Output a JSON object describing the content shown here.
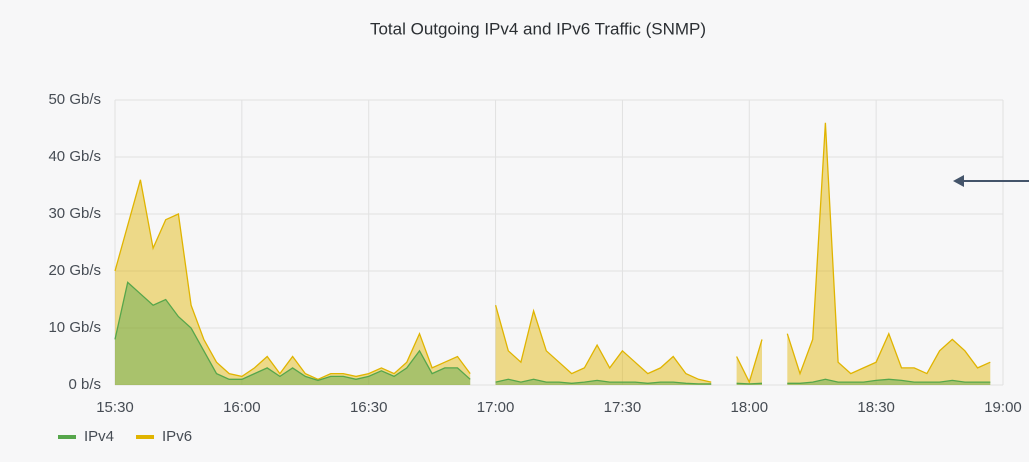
{
  "chart_data": {
    "type": "area",
    "title": "Total Outgoing IPv4 and IPv6 Traffic (SNMP)",
    "x": [
      "15:30",
      "15:33",
      "15:36",
      "15:39",
      "15:42",
      "15:45",
      "15:48",
      "15:51",
      "15:54",
      "15:57",
      "16:00",
      "16:03",
      "16:06",
      "16:09",
      "16:12",
      "16:15",
      "16:18",
      "16:21",
      "16:24",
      "16:27",
      "16:30",
      "16:33",
      "16:36",
      "16:39",
      "16:42",
      "16:45",
      "16:48",
      "16:51",
      "16:54",
      "16:57",
      "17:00",
      "17:03",
      "17:06",
      "17:09",
      "17:12",
      "17:15",
      "17:18",
      "17:21",
      "17:24",
      "17:27",
      "17:30",
      "17:33",
      "17:36",
      "17:39",
      "17:42",
      "17:45",
      "17:48",
      "17:51",
      "17:54",
      "17:57",
      "18:00",
      "18:03",
      "18:06",
      "18:09",
      "18:12",
      "18:15",
      "18:18",
      "18:21",
      "18:24",
      "18:27",
      "18:30",
      "18:33",
      "18:36",
      "18:39",
      "18:42",
      "18:45",
      "18:48",
      "18:51",
      "18:54",
      "18:57"
    ],
    "series": [
      {
        "name": "IPv6",
        "color": "#e0b400",
        "values": [
          20,
          28,
          36,
          24,
          29,
          30,
          14,
          8,
          4,
          2,
          1.5,
          3,
          5,
          2,
          5,
          2,
          1,
          2,
          2,
          1.5,
          2,
          3,
          2,
          4,
          9,
          3,
          4,
          5,
          2,
          null,
          14,
          6,
          4,
          13,
          6,
          4,
          2,
          3,
          7,
          3,
          6,
          4,
          2,
          3,
          5,
          2,
          1,
          0.5,
          null,
          5,
          0.5,
          8,
          null,
          9,
          2,
          8,
          46,
          4,
          2,
          3,
          4,
          9,
          3,
          3,
          2,
          6,
          8,
          6,
          3,
          4
        ]
      },
      {
        "name": "IPv4",
        "color": "#56a64b",
        "values": [
          8,
          18,
          16,
          14,
          15,
          12,
          10,
          6,
          2,
          1,
          1,
          2,
          3,
          1.5,
          3,
          1.5,
          0.8,
          1.5,
          1.5,
          1,
          1.5,
          2.5,
          1.5,
          3,
          6,
          2,
          3,
          3,
          1,
          null,
          0.5,
          1,
          0.5,
          1,
          0.5,
          0.5,
          0.3,
          0.5,
          0.8,
          0.5,
          0.5,
          0.5,
          0.3,
          0.5,
          0.5,
          0.3,
          0.2,
          0.2,
          null,
          0.3,
          0.2,
          0.3,
          null,
          0.3,
          0.3,
          0.5,
          1,
          0.5,
          0.5,
          0.5,
          0.8,
          1,
          0.8,
          0.5,
          0.5,
          0.5,
          0.8,
          0.5,
          0.5,
          0.5
        ]
      }
    ],
    "xlim": [
      "15:30",
      "19:00"
    ],
    "xticks": [
      "15:30",
      "16:00",
      "16:30",
      "17:00",
      "17:30",
      "18:00",
      "18:30",
      "19:00"
    ],
    "ylim": [
      0,
      50
    ],
    "yticks": [
      {
        "value": 0,
        "label": "0 b/s"
      },
      {
        "value": 10,
        "label": "10 Gb/s"
      },
      {
        "value": 20,
        "label": "20 Gb/s"
      },
      {
        "value": 30,
        "label": "30 Gb/s"
      },
      {
        "value": 40,
        "label": "40 Gb/s"
      },
      {
        "value": 50,
        "label": "50 Gb/s"
      }
    ],
    "grid": true,
    "legend": "bottom-left"
  }
}
